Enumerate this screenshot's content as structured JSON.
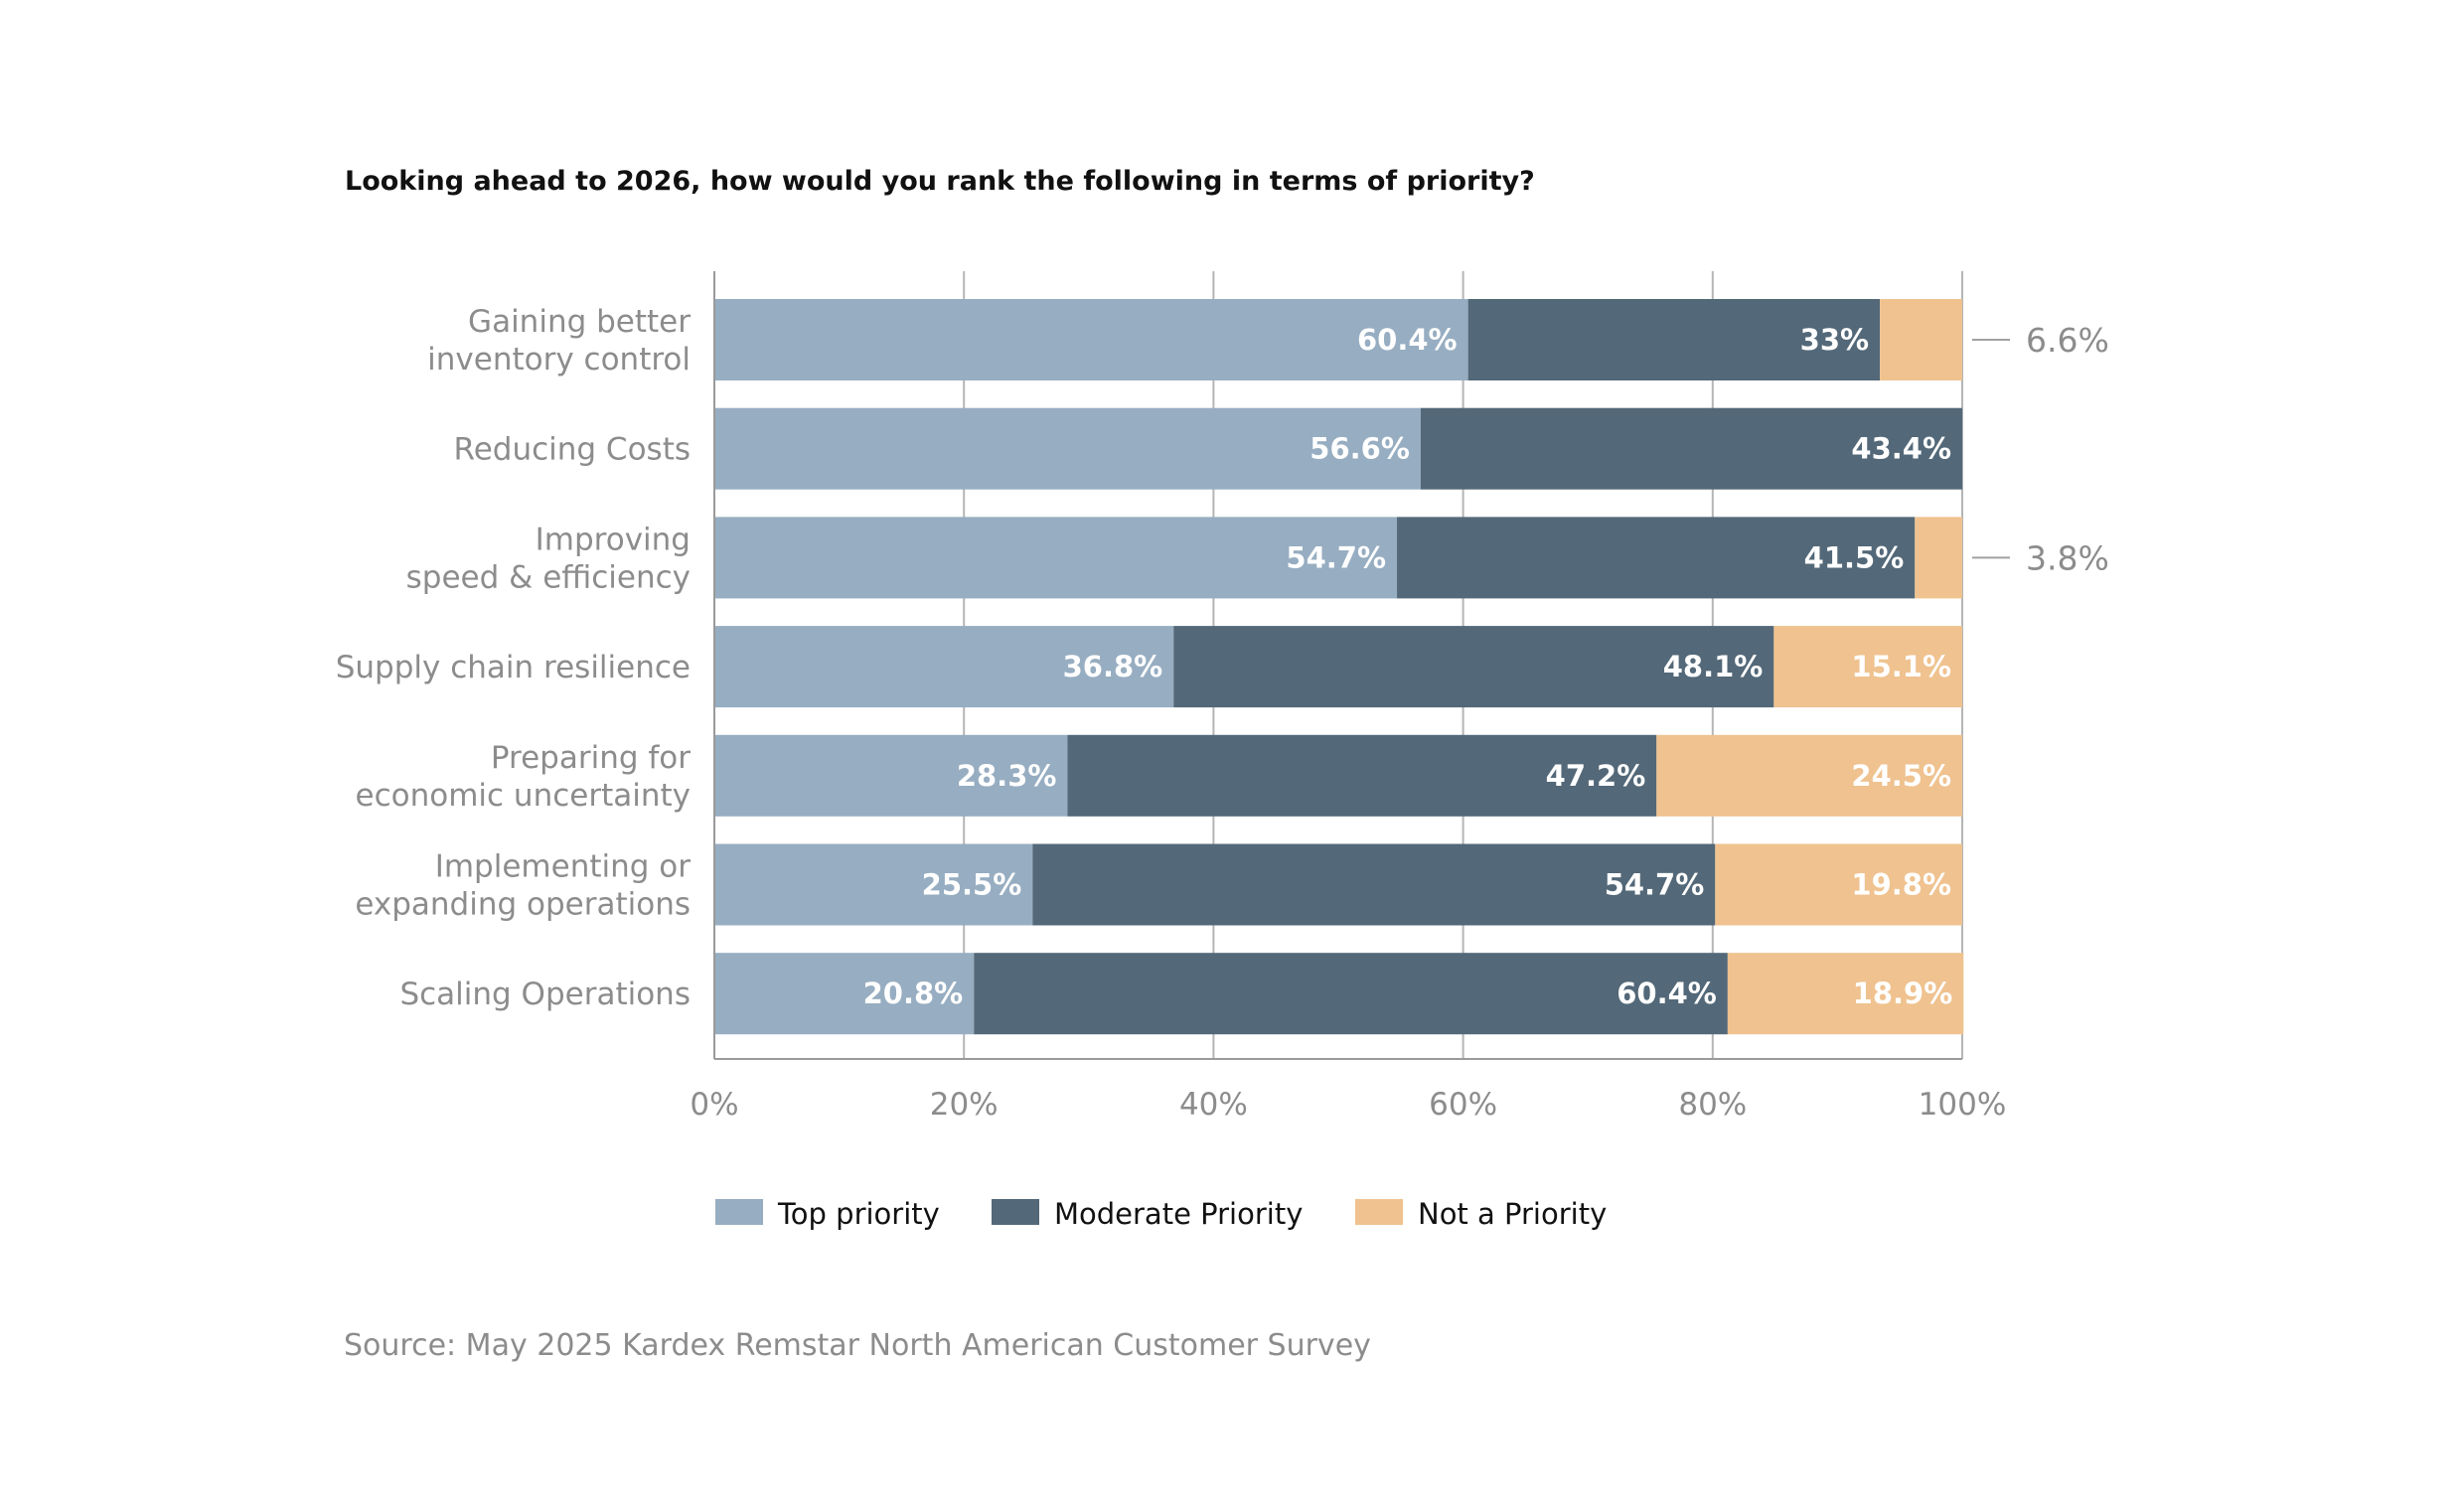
{
  "chart_data": {
    "type": "bar",
    "orientation": "horizontal",
    "stacked": true,
    "title": "Looking ahead to 2026, how would you rank the following in terms of priority?",
    "categories": [
      [
        "Gaining better",
        "inventory control"
      ],
      [
        "Reducing Costs"
      ],
      [
        "Improving",
        "speed & efficiency"
      ],
      [
        "Supply chain resilience"
      ],
      [
        "Preparing for",
        "economic uncertainty"
      ],
      [
        "Implementing or",
        "expanding operations"
      ],
      [
        "Scaling Operations"
      ]
    ],
    "series": [
      {
        "name": "Top priority",
        "color": "#97adc1",
        "values": [
          60.4,
          56.6,
          54.7,
          36.8,
          28.3,
          25.5,
          20.8
        ],
        "labels": [
          "60.4%",
          "56.6%",
          "54.7%",
          "36.8%",
          "28.3%",
          "25.5%",
          "20.8%"
        ]
      },
      {
        "name": "Moderate Priority",
        "color": "#536878",
        "values": [
          33,
          43.4,
          41.5,
          48.1,
          47.2,
          54.7,
          60.4
        ],
        "labels": [
          "33%",
          "43.4%",
          "41.5%",
          "48.1%",
          "47.2%",
          "54.7%",
          "60.4%"
        ]
      },
      {
        "name": "Not a Priority",
        "color": "#efc28f",
        "values": [
          6.6,
          0,
          3.8,
          15.1,
          24.5,
          19.8,
          18.9
        ],
        "labels": [
          "6.6%",
          "",
          "3.8%",
          "15.1%",
          "24.5%",
          "19.8%",
          "18.9%"
        ],
        "outside_labels": [
          true,
          false,
          true,
          false,
          false,
          false,
          false
        ]
      }
    ],
    "xlim": [
      0,
      100
    ],
    "xticks": [
      0,
      20,
      40,
      60,
      80,
      100
    ],
    "xtick_labels": [
      "0%",
      "20%",
      "40%",
      "60%",
      "80%",
      "100%"
    ],
    "grid": true,
    "legend_position": "bottom-left",
    "source": "Source: May 2025 Kardex Remstar North American Customer Survey"
  }
}
